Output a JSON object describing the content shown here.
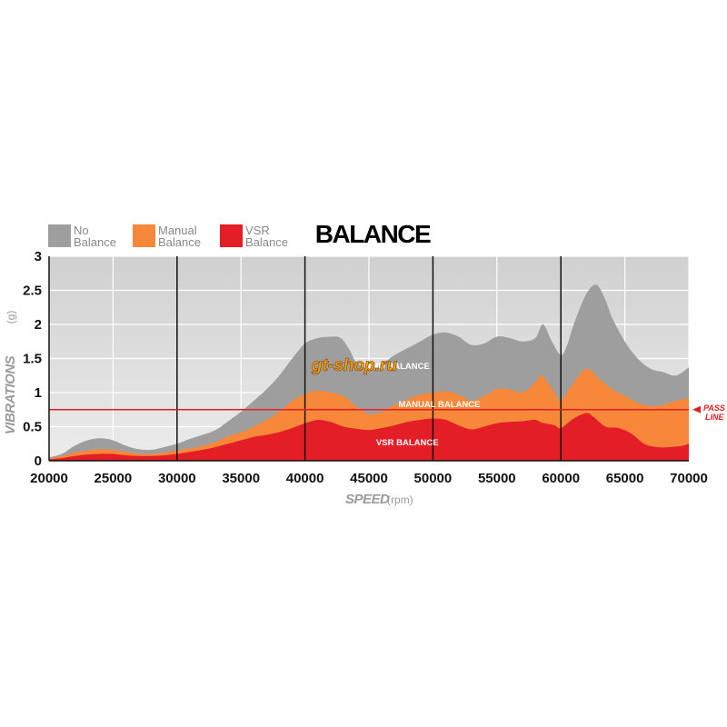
{
  "chart_data": {
    "type": "area",
    "title": "BALANCE",
    "xlabel": "SPEED",
    "xlabel_unit": "(rpm)",
    "ylabel": "VIBRATIONS",
    "ylabel_unit": "(g)",
    "xlim": [
      20000,
      70000
    ],
    "ylim": [
      0,
      3
    ],
    "x_ticks": [
      20000,
      25000,
      30000,
      35000,
      40000,
      45000,
      50000,
      55000,
      60000,
      65000,
      70000
    ],
    "y_ticks": [
      0,
      0.5,
      1,
      1.5,
      2,
      2.5,
      3
    ],
    "y_tick_labels": [
      "0",
      "0.5",
      "1",
      "1.5",
      "2",
      "2.5",
      "3"
    ],
    "major_gridlines_x": [
      30000,
      40000,
      50000,
      60000
    ],
    "grid": true,
    "legend_position": "top-left",
    "series": [
      {
        "name": "No Balance",
        "color": "#9e9e9e",
        "area_label": "NO BALANCE",
        "points": [
          [
            20000,
            0.05
          ],
          [
            21000,
            0.1
          ],
          [
            22000,
            0.22
          ],
          [
            23000,
            0.3
          ],
          [
            24000,
            0.33
          ],
          [
            25000,
            0.3
          ],
          [
            26000,
            0.22
          ],
          [
            27000,
            0.17
          ],
          [
            28000,
            0.16
          ],
          [
            29000,
            0.2
          ],
          [
            30000,
            0.25
          ],
          [
            31000,
            0.32
          ],
          [
            32000,
            0.38
          ],
          [
            33000,
            0.45
          ],
          [
            34000,
            0.58
          ],
          [
            35000,
            0.72
          ],
          [
            36000,
            0.88
          ],
          [
            37000,
            1.05
          ],
          [
            38000,
            1.25
          ],
          [
            39000,
            1.5
          ],
          [
            40000,
            1.72
          ],
          [
            41000,
            1.8
          ],
          [
            42000,
            1.82
          ],
          [
            42800,
            1.8
          ],
          [
            43500,
            1.62
          ],
          [
            44000,
            1.45
          ],
          [
            45000,
            1.35
          ],
          [
            46000,
            1.42
          ],
          [
            47000,
            1.55
          ],
          [
            48000,
            1.65
          ],
          [
            49000,
            1.75
          ],
          [
            50000,
            1.85
          ],
          [
            51000,
            1.88
          ],
          [
            52000,
            1.82
          ],
          [
            53000,
            1.7
          ],
          [
            54000,
            1.72
          ],
          [
            55000,
            1.82
          ],
          [
            56000,
            1.8
          ],
          [
            57000,
            1.75
          ],
          [
            58000,
            1.8
          ],
          [
            58600,
            2.0
          ],
          [
            59300,
            1.75
          ],
          [
            60000,
            1.55
          ],
          [
            60500,
            1.7
          ],
          [
            61000,
            2.0
          ],
          [
            62000,
            2.45
          ],
          [
            62800,
            2.58
          ],
          [
            63500,
            2.35
          ],
          [
            64000,
            2.1
          ],
          [
            65000,
            1.75
          ],
          [
            66000,
            1.5
          ],
          [
            67000,
            1.35
          ],
          [
            68000,
            1.3
          ],
          [
            69000,
            1.25
          ],
          [
            70000,
            1.37
          ]
        ]
      },
      {
        "name": "Manual Balance",
        "color": "#f7883a",
        "area_label": "MANUAL BALANCE",
        "points": [
          [
            20000,
            0.03
          ],
          [
            21000,
            0.07
          ],
          [
            22000,
            0.12
          ],
          [
            23000,
            0.15
          ],
          [
            24000,
            0.17
          ],
          [
            25000,
            0.16
          ],
          [
            26000,
            0.13
          ],
          [
            27000,
            0.1
          ],
          [
            28000,
            0.1
          ],
          [
            29000,
            0.12
          ],
          [
            30000,
            0.15
          ],
          [
            31000,
            0.18
          ],
          [
            32000,
            0.22
          ],
          [
            33000,
            0.28
          ],
          [
            34000,
            0.36
          ],
          [
            35000,
            0.42
          ],
          [
            36000,
            0.5
          ],
          [
            37000,
            0.6
          ],
          [
            38000,
            0.72
          ],
          [
            39000,
            0.88
          ],
          [
            40000,
            0.98
          ],
          [
            41000,
            1.03
          ],
          [
            42000,
            1.0
          ],
          [
            43000,
            0.95
          ],
          [
            44000,
            0.8
          ],
          [
            45000,
            0.68
          ],
          [
            46000,
            0.72
          ],
          [
            47000,
            0.82
          ],
          [
            48000,
            0.9
          ],
          [
            49000,
            0.97
          ],
          [
            50000,
            1.0
          ],
          [
            51000,
            1.02
          ],
          [
            52000,
            0.97
          ],
          [
            53000,
            0.88
          ],
          [
            54000,
            0.95
          ],
          [
            55000,
            1.05
          ],
          [
            56000,
            1.05
          ],
          [
            57000,
            1.0
          ],
          [
            58000,
            1.15
          ],
          [
            58500,
            1.25
          ],
          [
            59500,
            1.0
          ],
          [
            60000,
            0.88
          ],
          [
            61000,
            1.15
          ],
          [
            62000,
            1.35
          ],
          [
            63000,
            1.2
          ],
          [
            64000,
            1.05
          ],
          [
            65000,
            0.95
          ],
          [
            66000,
            0.85
          ],
          [
            67000,
            0.8
          ],
          [
            68000,
            0.82
          ],
          [
            69000,
            0.88
          ],
          [
            70000,
            0.92
          ]
        ]
      },
      {
        "name": "VSR Balance",
        "color": "#e41e26",
        "area_label": "VSR BALANCE",
        "points": [
          [
            20000,
            0.02
          ],
          [
            21000,
            0.04
          ],
          [
            22000,
            0.07
          ],
          [
            23000,
            0.09
          ],
          [
            24000,
            0.1
          ],
          [
            25000,
            0.1
          ],
          [
            26000,
            0.08
          ],
          [
            27000,
            0.07
          ],
          [
            28000,
            0.07
          ],
          [
            29000,
            0.08
          ],
          [
            30000,
            0.1
          ],
          [
            31000,
            0.13
          ],
          [
            32000,
            0.16
          ],
          [
            33000,
            0.2
          ],
          [
            34000,
            0.25
          ],
          [
            35000,
            0.3
          ],
          [
            36000,
            0.35
          ],
          [
            37000,
            0.38
          ],
          [
            38000,
            0.42
          ],
          [
            39000,
            0.48
          ],
          [
            40000,
            0.55
          ],
          [
            41000,
            0.6
          ],
          [
            42000,
            0.57
          ],
          [
            43000,
            0.5
          ],
          [
            44000,
            0.47
          ],
          [
            45000,
            0.45
          ],
          [
            46000,
            0.48
          ],
          [
            47000,
            0.52
          ],
          [
            48000,
            0.57
          ],
          [
            49000,
            0.6
          ],
          [
            50000,
            0.62
          ],
          [
            51000,
            0.6
          ],
          [
            52000,
            0.52
          ],
          [
            53000,
            0.46
          ],
          [
            54000,
            0.5
          ],
          [
            55000,
            0.55
          ],
          [
            56000,
            0.57
          ],
          [
            57000,
            0.58
          ],
          [
            58000,
            0.6
          ],
          [
            58500,
            0.56
          ],
          [
            59500,
            0.52
          ],
          [
            60000,
            0.48
          ],
          [
            61000,
            0.62
          ],
          [
            62000,
            0.7
          ],
          [
            62500,
            0.65
          ],
          [
            63500,
            0.5
          ],
          [
            64500,
            0.48
          ],
          [
            65500,
            0.4
          ],
          [
            66500,
            0.25
          ],
          [
            67500,
            0.2
          ],
          [
            68500,
            0.2
          ],
          [
            69500,
            0.22
          ],
          [
            70000,
            0.25
          ]
        ]
      }
    ],
    "pass_line": {
      "value": 0.75,
      "label_line1": "PASS",
      "label_line2": "LINE",
      "color": "#e41e26"
    },
    "watermark": "gt-shop.ru"
  }
}
